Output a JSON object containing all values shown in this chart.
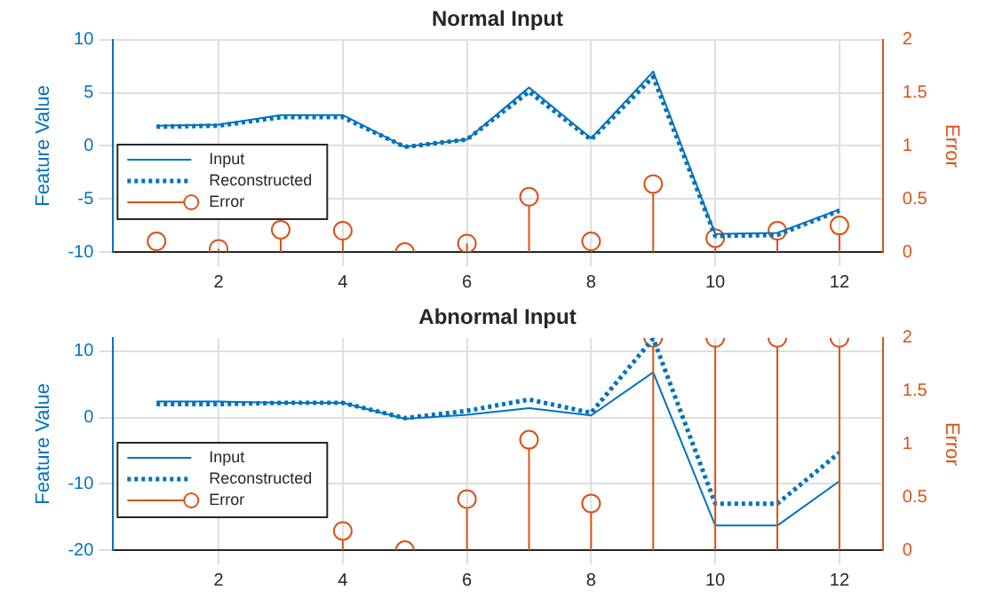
{
  "chart_data": [
    {
      "type": "line",
      "title": "Normal Input",
      "ylabel": "Feature Value",
      "y2label": "Error",
      "x": [
        1,
        2,
        3,
        4,
        5,
        6,
        7,
        8,
        9,
        10,
        11,
        12
      ],
      "xlim": [
        0.3,
        12.7
      ],
      "xticks": [
        2,
        4,
        6,
        8,
        10,
        12
      ],
      "ylim": [
        -10,
        10
      ],
      "yticks": [
        -10,
        -5,
        0,
        5,
        10
      ],
      "y2lim": [
        0,
        2
      ],
      "y2ticks": [
        0,
        0.5,
        1,
        1.5,
        2
      ],
      "grid": true,
      "legend": "bottom left",
      "series": [
        {
          "name": "Input",
          "color": "#0072bd",
          "line_style": "solid",
          "marker": "none",
          "values": [
            1.9,
            2.0,
            2.9,
            2.9,
            -0.1,
            0.6,
            5.5,
            0.7,
            7.0,
            -8.3,
            -8.2,
            -6.0
          ]
        },
        {
          "name": "Reconstructed",
          "color": "#0072bd",
          "line_style": "dotted",
          "marker": "none",
          "values": [
            1.8,
            1.9,
            2.7,
            2.7,
            -0.1,
            0.6,
            5.1,
            0.6,
            6.5,
            -8.5,
            -8.4,
            -6.1
          ]
        },
        {
          "name": "Error",
          "type": "lollipop",
          "axis": "y2",
          "color": "#d95319",
          "marker": "circle",
          "values": [
            0.1,
            0.03,
            0.21,
            0.2,
            0,
            0.08,
            0.52,
            0.1,
            0.64,
            0.13,
            0.2,
            0.25
          ]
        }
      ]
    },
    {
      "type": "line",
      "title": "Abnormal Input",
      "ylabel": "Feature Value",
      "y2label": "Error",
      "x": [
        1,
        2,
        3,
        4,
        5,
        6,
        7,
        8,
        9,
        10,
        11,
        12
      ],
      "xlim": [
        0.3,
        12.7
      ],
      "xticks": [
        2,
        4,
        6,
        8,
        10,
        12
      ],
      "ylim": [
        -20,
        12
      ],
      "yticks": [
        -20,
        -10,
        0,
        10
      ],
      "y2lim": [
        0,
        2
      ],
      "y2ticks": [
        0,
        0.5,
        1,
        1.5,
        2
      ],
      "grid": true,
      "legend": "bottom left",
      "series": [
        {
          "name": "Input",
          "color": "#0072bd",
          "line_style": "solid",
          "marker": "none",
          "values": [
            2.4,
            2.4,
            2.2,
            2.2,
            -0.2,
            0.4,
            1.4,
            0.3,
            6.8,
            -16.3,
            -16.3,
            -9.6
          ]
        },
        {
          "name": "Reconstructed",
          "color": "#0072bd",
          "line_style": "dotted",
          "marker": "none",
          "values": [
            2.0,
            2.0,
            2.2,
            2.2,
            -0.1,
            1.0,
            2.7,
            0.7,
            11.9,
            -13.0,
            -13.0,
            -5.3
          ]
        },
        {
          "name": "Error",
          "type": "lollipop",
          "axis": "y2",
          "color": "#d95319",
          "marker": "circle",
          "values": [
            null,
            null,
            null,
            0.18,
            0,
            0.48,
            1.04,
            0.44,
            2,
            2,
            2,
            2
          ]
        }
      ]
    }
  ]
}
